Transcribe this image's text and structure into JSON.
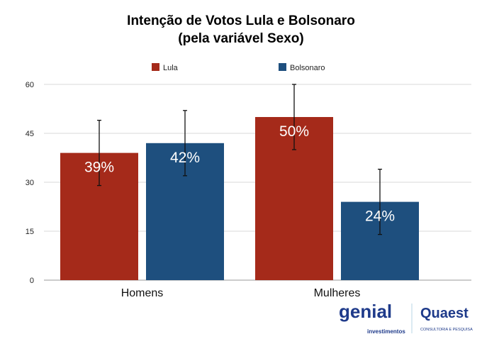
{
  "chart_data": {
    "type": "bar",
    "title_line1": "Intenção de Votos Lula e Bolsonaro",
    "title_line2": "(pela variável Sexo)",
    "categories": [
      "Homens",
      "Mulheres"
    ],
    "series": [
      {
        "name": "Lula",
        "color": "#A52A1A",
        "values": [
          39,
          50
        ],
        "labels": [
          "39%",
          "50%"
        ],
        "error_low": [
          29,
          40
        ],
        "error_high": [
          49,
          60
        ]
      },
      {
        "name": "Bolsonaro",
        "color": "#1E4F7E",
        "values": [
          42,
          24
        ],
        "labels": [
          "42%",
          "24%"
        ],
        "error_low": [
          32,
          14
        ],
        "error_high": [
          52,
          34
        ]
      }
    ],
    "yticks": [
      "0",
      "15",
      "30",
      "45",
      "60"
    ],
    "ylim": [
      0,
      60
    ],
    "grid": true,
    "legend": "top-center",
    "xlabel": "",
    "ylabel": ""
  },
  "logos": {
    "genial": "genial",
    "genial_sub": "investimentos",
    "quaest": "Quaest",
    "quaest_sub": "CONSULTORIA E PESQUISA"
  }
}
